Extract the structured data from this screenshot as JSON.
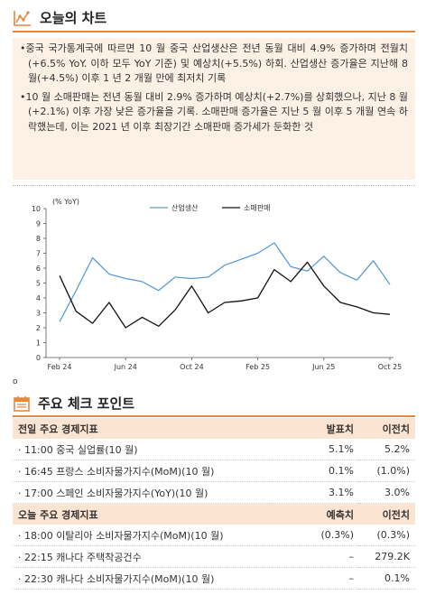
{
  "section1": {
    "title": "오늘의 차트",
    "bullets": [
      "중국 국가통계국에 따르면 10 월 중국 산업생산은 전년 동월 대비 4.9% 증가하며 전월치(+6.5% YoY. 이하 모두 YoY 기준) 및 예상치(+5.5%) 하회. 산업생산 증가율은 지난해 8 월(+4.5%) 이후 1 년 2 개월 만에 최저치 기록",
      "10 월 소매판매는 전년 동월 대비 2.9% 증가하며 예상치(+2.7%)를 상회했으나, 지난 8 월(+2.1%) 이후 가장 낮은 증가율을 기록. 소매판매 증가율은 지난 5 월 이후 5 개월 연속 하락했는데, 이는 2021 년 이후 최장기간 소매판매 증가세가 둔화한 것"
    ],
    "note": "o"
  },
  "chart_data": {
    "type": "line",
    "ylabel": "(% YoY)",
    "ylim": [
      0,
      10
    ],
    "yticks": [
      "0",
      "1",
      "2",
      "3",
      "4",
      "5",
      "6",
      "7",
      "8",
      "9",
      "10"
    ],
    "xtick_labels": [
      "Feb 24",
      "Jun 24",
      "Oct 24",
      "Feb 25",
      "Jun 25",
      "Oct 25"
    ],
    "x": [
      "2024-02",
      "2024-03",
      "2024-04",
      "2024-05",
      "2024-06",
      "2024-07",
      "2024-08",
      "2024-09",
      "2024-10",
      "2024-11",
      "2024-12",
      "2025-01",
      "2025-02",
      "2025-03",
      "2025-04",
      "2025-05",
      "2025-06",
      "2025-07",
      "2025-08",
      "2025-09",
      "2025-10"
    ],
    "grid": false,
    "legend_position": "top",
    "series": [
      {
        "name": "산업생산",
        "color": "#5b9bd5",
        "values": [
          2.4,
          4.5,
          6.7,
          5.6,
          5.3,
          5.1,
          4.5,
          5.4,
          5.3,
          5.4,
          6.2,
          6.6,
          7.0,
          7.7,
          6.1,
          5.8,
          6.8,
          5.7,
          5.2,
          6.5,
          4.9
        ]
      },
      {
        "name": "소매판매",
        "color": "#111111",
        "values": [
          5.5,
          3.1,
          2.3,
          3.7,
          2.0,
          2.7,
          2.1,
          3.2,
          4.8,
          3.0,
          3.7,
          3.8,
          4.0,
          5.9,
          5.1,
          6.4,
          4.8,
          3.7,
          3.4,
          3.0,
          2.9
        ]
      }
    ]
  },
  "section2": {
    "title": "주요 체크 포인트",
    "groups": [
      {
        "header": [
          "전일 주요 경제지표",
          "발표치",
          "이전치"
        ],
        "rows": [
          [
            "· 11:00 중국 실업률(10 월)",
            "5.1%",
            "5.2%"
          ],
          [
            "· 16:45 프랑스 소비자물가지수(MoM)(10 월)",
            "0.1%",
            "(1.0%)"
          ],
          [
            "· 17:00 스페인 소비자물가지수(YoY)(10 월)",
            "3.1%",
            "3.0%"
          ]
        ]
      },
      {
        "header": [
          "오늘 주요 경제지표",
          "예측치",
          "이전치"
        ],
        "rows": [
          [
            "· 18:00 이탈리아 소비자물가지수(MoM)(10 월)",
            "(0.3%)",
            "(0.3%)"
          ],
          [
            "· 22:15 캐나다 주택착공건수",
            "–",
            "279.2K"
          ],
          [
            "· 22:30 캐나다 소비자물가지수(MoM)(10 월)",
            "–",
            "0.1%"
          ]
        ]
      }
    ]
  }
}
